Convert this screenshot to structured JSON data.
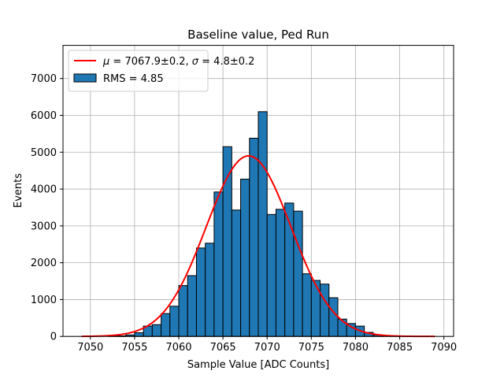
{
  "chart_data": {
    "type": "bar",
    "title": "Baseline value, Ped Run",
    "xlabel": "Sample Value [ADC Counts]",
    "ylabel": "Events",
    "xlim": [
      7046.9,
      7091.1
    ],
    "ylim": [
      0,
      7900
    ],
    "grid": true,
    "legend_position": "top-left",
    "x_ticks": [
      7050,
      7055,
      7060,
      7065,
      7070,
      7075,
      7080,
      7085,
      7090
    ],
    "y_ticks": [
      0,
      1000,
      2000,
      3000,
      4000,
      5000,
      6000,
      7000
    ],
    "x_tick_labels": [
      "7050",
      "7055",
      "7060",
      "7065",
      "7070",
      "7075",
      "7080",
      "7085",
      "7090"
    ],
    "y_tick_labels": [
      "0",
      "1000",
      "2000",
      "3000",
      "4000",
      "5000",
      "6000",
      "7000"
    ],
    "bins": {
      "edges": [
        7049,
        7050,
        7051,
        7052,
        7053,
        7054,
        7055,
        7056,
        7057,
        7058,
        7059,
        7060,
        7061,
        7062,
        7063,
        7064,
        7065,
        7066,
        7067,
        7068,
        7069,
        7070,
        7071,
        7072,
        7073,
        7074,
        7075,
        7076,
        7077,
        7078,
        7079,
        7080,
        7081,
        7082,
        7083,
        7084,
        7085,
        7086,
        7087,
        7088,
        7089
      ],
      "counts": [
        0,
        0,
        0,
        5,
        15,
        40,
        100,
        280,
        320,
        620,
        820,
        1380,
        1650,
        2400,
        2530,
        3920,
        5150,
        3430,
        4270,
        5380,
        6100,
        3310,
        3450,
        3620,
        3400,
        1700,
        1520,
        1420,
        1050,
        470,
        350,
        280,
        110,
        40,
        15,
        5,
        0,
        0,
        0,
        0
      ]
    },
    "series": [
      {
        "name": "RMS = 4.85",
        "kind": "histogram",
        "color": "#1f77b4",
        "edge_color": "#000000"
      },
      {
        "name": "μ = 7067.9±0.2, σ = 4.8±0.2",
        "kind": "gaussian_fit",
        "color": "#ff0000",
        "amplitude": 4900,
        "mean": 7067.9,
        "sigma": 4.8,
        "x_range": [
          7049,
          7089
        ]
      }
    ],
    "legend": [
      {
        "label_prefix_mu": "μ",
        "mu_text": " = 7067.9±0.2, ",
        "label_prefix_sigma": "σ",
        "sigma_text": " = 4.8±0.2"
      },
      {
        "label": "RMS = 4.85"
      }
    ]
  }
}
